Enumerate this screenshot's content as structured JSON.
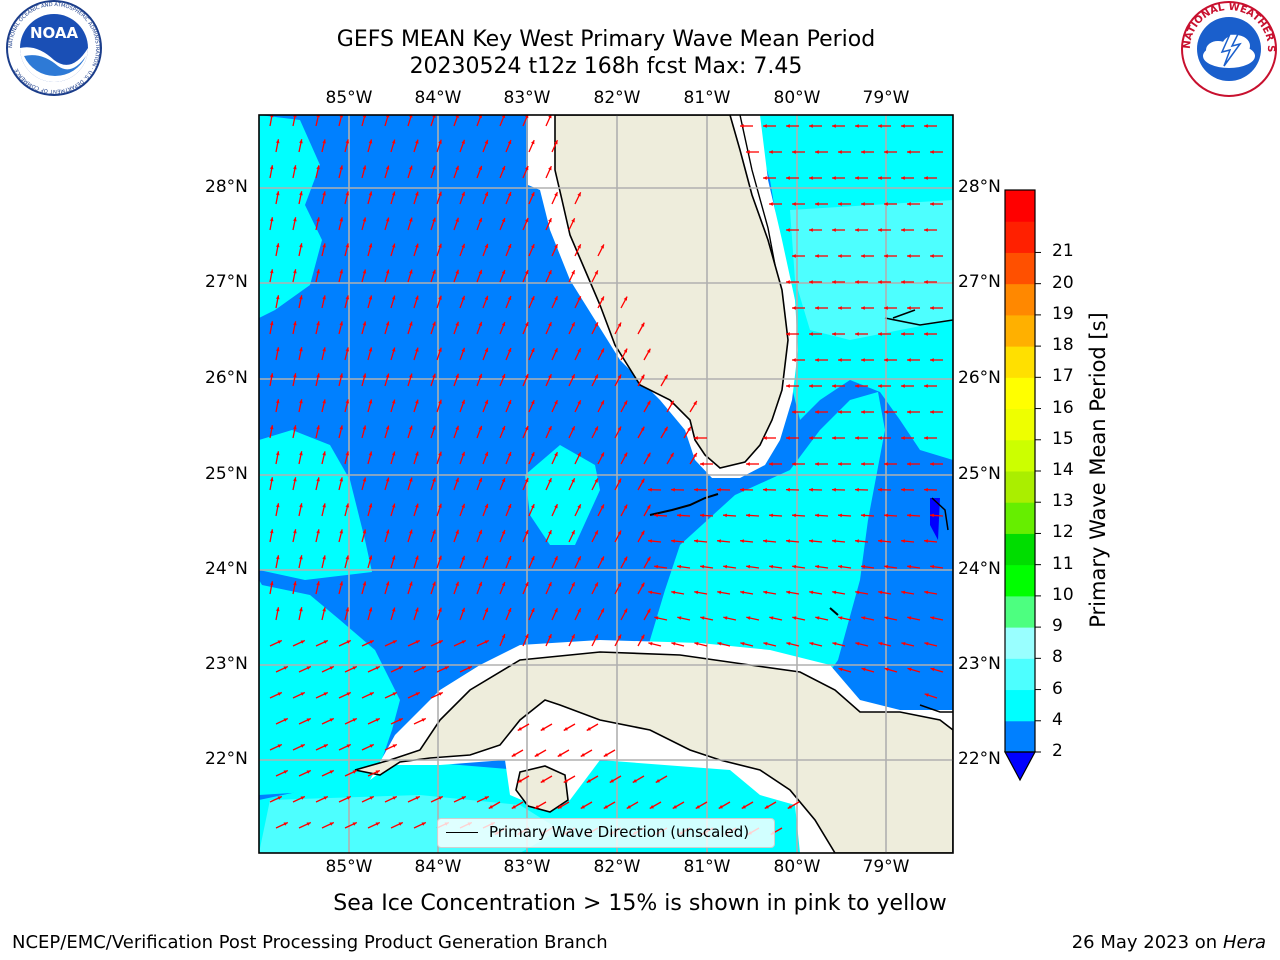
{
  "header": {
    "title_line1": "GEFS MEAN Key West Primary Wave Mean Period",
    "title_line2": "20230524 t12z 168h fcst   Max: 7.45"
  },
  "logos": {
    "left": {
      "name": "NOAA",
      "ring_text": "NATIONAL OCEANIC AND ATMOSPHERIC ADMINISTRATION · U.S. DEPARTMENT OF COMMERCE"
    },
    "right": {
      "ring_text": "NATIONAL WEATHER SERVICE"
    }
  },
  "map": {
    "lon_labels": [
      "85°W",
      "84°W",
      "83°W",
      "82°W",
      "81°W",
      "80°W",
      "79°W"
    ],
    "lat_labels": [
      "28°N",
      "27°N",
      "26°N",
      "25°N",
      "24°N",
      "23°N",
      "22°N"
    ],
    "colors": {
      "band_2_4": "#0080ff",
      "band_4_6": "#00ffff",
      "band_6_8": "#4dffff",
      "under_2": "#0000ff",
      "land": "#eeeddc",
      "arrow": "#ff0000",
      "grid": "#b0b0b0"
    },
    "legend": {
      "label": "Primary Wave Direction (unscaled)"
    }
  },
  "colorbar": {
    "label": "Primary Wave Mean Period [s]",
    "ticks": [
      "2",
      "4",
      "6",
      "8",
      "9",
      "10",
      "11",
      "12",
      "13",
      "14",
      "15",
      "16",
      "17",
      "18",
      "19",
      "20",
      "21"
    ],
    "colors": [
      "#0080ff",
      "#00ffff",
      "#4dffff",
      "#99ffff",
      "#4dff80",
      "#00ff00",
      "#00dd00",
      "#66ee00",
      "#aaee00",
      "#ccff00",
      "#eeff00",
      "#ffff00",
      "#ffe000",
      "#ffb000",
      "#ff8800",
      "#ff5000",
      "#ff2000",
      "#ff0000"
    ],
    "under_color": "#0000ff"
  },
  "footer": {
    "ice_note": "Sea Ice Concentration > 15% is shown in pink to yellow",
    "credit_left": "NCEP/EMC/Verification Post Processing Product Generation Branch",
    "credit_right_date": "26 May 2023 on",
    "credit_right_host": "Hera"
  }
}
